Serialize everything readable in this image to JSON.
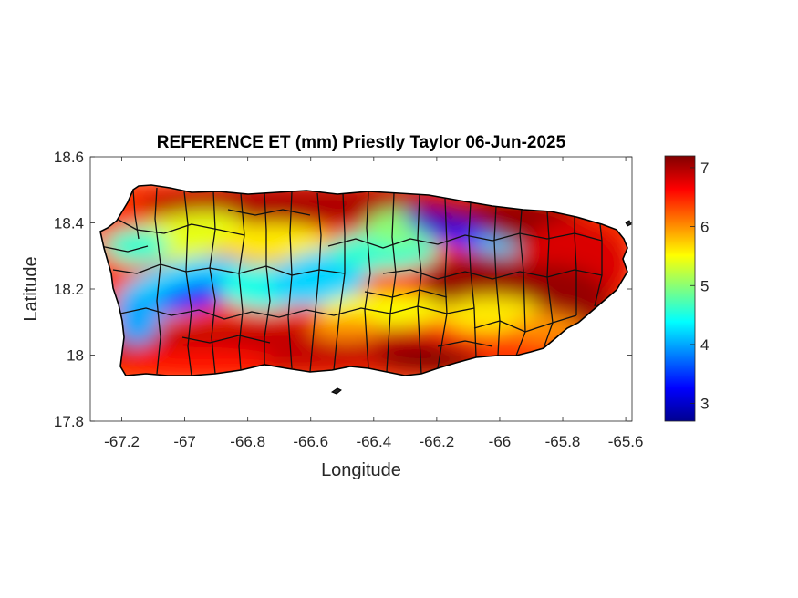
{
  "chart_data": {
    "type": "heatmap",
    "title": "REFERENCE ET (mm) Priestly Taylor 06-Jun-2025",
    "xlabel": "Longitude",
    "ylabel": "Latitude",
    "xlim": [
      -67.3,
      -65.58
    ],
    "ylim": [
      17.8,
      18.6
    ],
    "xticks": [
      -67.2,
      -67,
      -66.8,
      -66.6,
      -66.4,
      -66.2,
      -66,
      -65.8,
      -65.6
    ],
    "xtick_labels": [
      "-67.2",
      "-67",
      "-66.8",
      "-66.6",
      "-66.4",
      "-66.2",
      "-66",
      "-65.8",
      "-65.6"
    ],
    "yticks": [
      17.8,
      18,
      18.2,
      18.4,
      18.6
    ],
    "ytick_labels": [
      "17.8",
      "18",
      "18.2",
      "18.4",
      "18.6"
    ],
    "colorbar": {
      "colormap": "jet",
      "clim": [
        2.7,
        7.2
      ],
      "ticks": [
        3,
        4,
        5,
        6,
        7
      ],
      "tick_labels": [
        "3",
        "4",
        "5",
        "6",
        "7"
      ]
    },
    "region": "Puerto Rico municipalities",
    "value_zones": [
      {
        "area": "north-central coast",
        "approx_value": 6.8
      },
      {
        "area": "western interior (Mayagüez–Maricao)",
        "approx_value": 3.6
      },
      {
        "area": "central mountains",
        "approx_value": 4.2
      },
      {
        "area": "northeast band (-66.3 to -66.0, 18.35)",
        "approx_value": 3.0
      },
      {
        "area": "southern coast",
        "approx_value": 6.9
      },
      {
        "area": "eastern region",
        "approx_value": 7.0
      }
    ]
  }
}
